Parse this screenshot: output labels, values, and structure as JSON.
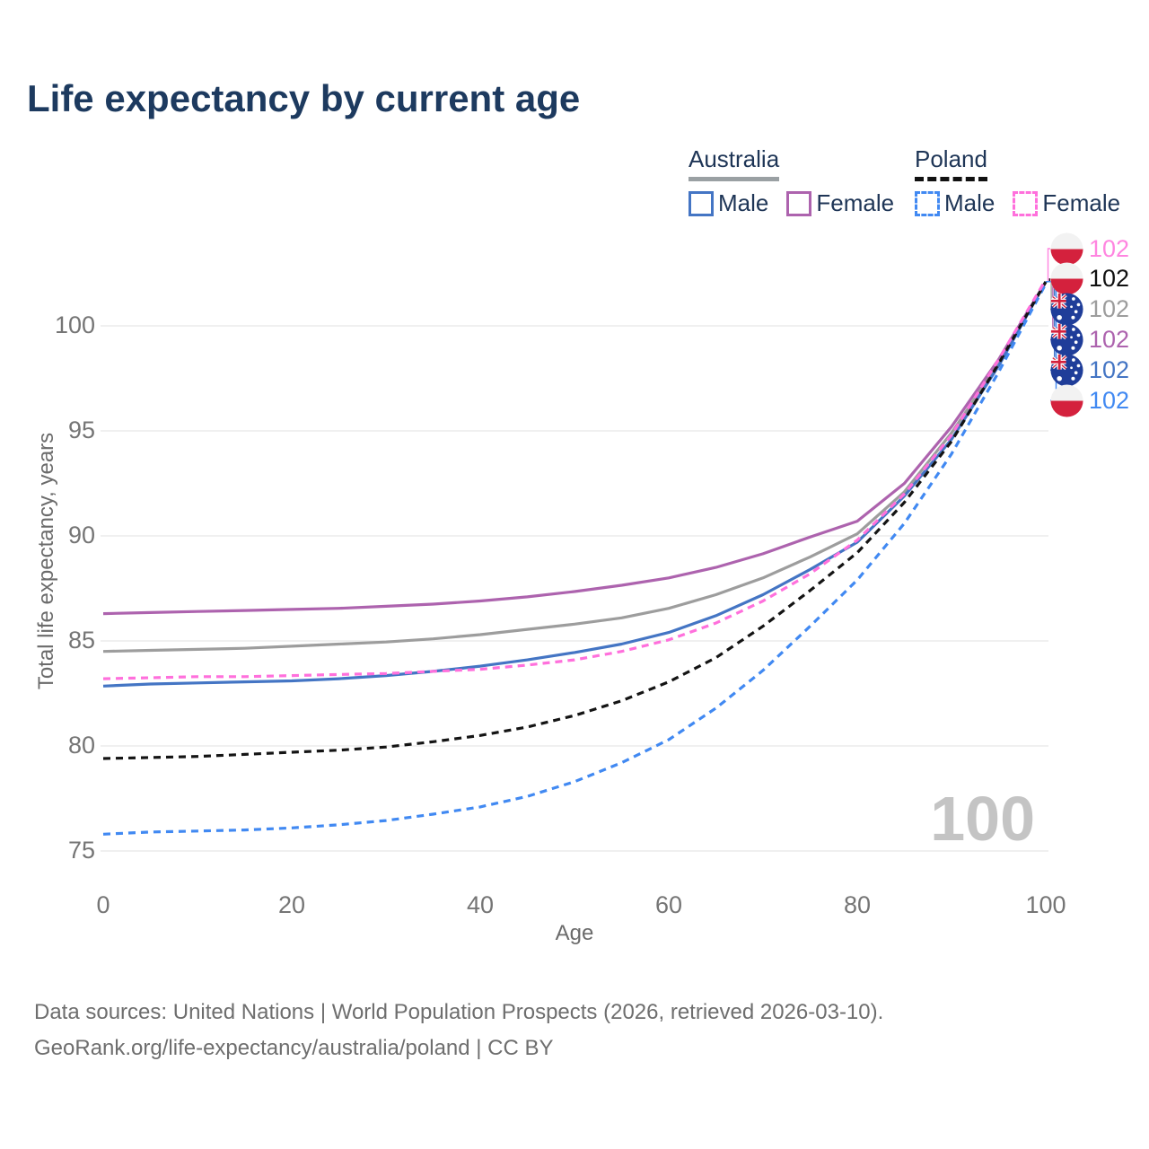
{
  "title": "Life expectancy by current age",
  "legend": {
    "australia": {
      "label": "Australia",
      "male": "Male",
      "female": "Female"
    },
    "poland": {
      "label": "Poland",
      "male": "Male",
      "female": "Female"
    }
  },
  "chart_data": {
    "type": "line",
    "title": "Life expectancy by current age",
    "xlabel": "Age",
    "ylabel": "Total life expectancy, years",
    "watermark": "100",
    "x_ticks": [
      0,
      20,
      40,
      60,
      80,
      100
    ],
    "y_ticks": [
      75,
      80,
      85,
      90,
      95,
      100
    ],
    "xlim": [
      0,
      100
    ],
    "ylim": [
      73.5,
      103.5
    ],
    "grid": "horizontal",
    "x": [
      0,
      5,
      10,
      15,
      20,
      25,
      30,
      35,
      40,
      45,
      50,
      55,
      60,
      65,
      70,
      75,
      80,
      85,
      90,
      95,
      100
    ],
    "series": [
      {
        "name": "Australia Both sexes",
        "country": "Australia",
        "color": "#9d9d9d",
        "dash": false,
        "values": [
          84.5,
          84.55,
          84.6,
          84.65,
          84.75,
          84.85,
          84.95,
          85.1,
          85.3,
          85.55,
          85.8,
          86.1,
          86.55,
          87.2,
          88.0,
          89.0,
          90.1,
          92.1,
          94.9,
          98.2,
          102.1
        ]
      },
      {
        "name": "Australia Female",
        "country": "Australia",
        "color": "#ad63ae",
        "dash": false,
        "values": [
          86.3,
          86.35,
          86.4,
          86.45,
          86.5,
          86.55,
          86.65,
          86.75,
          86.9,
          87.1,
          87.35,
          87.65,
          88.0,
          88.5,
          89.15,
          89.95,
          90.7,
          92.5,
          95.2,
          98.4,
          102.1
        ]
      },
      {
        "name": "Australia Male",
        "country": "Australia",
        "color": "#4475c4",
        "dash": false,
        "values": [
          82.85,
          82.95,
          83.0,
          83.05,
          83.1,
          83.2,
          83.35,
          83.55,
          83.8,
          84.1,
          84.45,
          84.85,
          85.4,
          86.2,
          87.2,
          88.4,
          89.7,
          91.9,
          94.6,
          98.1,
          102.1
        ]
      },
      {
        "name": "Poland Male",
        "country": "Poland",
        "color": "#4189f2",
        "dash": true,
        "values": [
          75.8,
          75.9,
          75.95,
          76.0,
          76.1,
          76.25,
          76.45,
          76.75,
          77.1,
          77.6,
          78.3,
          79.2,
          80.3,
          81.8,
          83.6,
          85.7,
          87.9,
          90.6,
          93.9,
          97.8,
          102.0
        ]
      },
      {
        "name": "Poland Both sexes",
        "country": "Poland",
        "color": "#141414",
        "dash": true,
        "values": [
          79.4,
          79.45,
          79.5,
          79.6,
          79.7,
          79.8,
          79.95,
          80.2,
          80.5,
          80.9,
          81.45,
          82.15,
          83.05,
          84.2,
          85.7,
          87.4,
          89.2,
          91.6,
          94.5,
          98.2,
          102.1
        ]
      },
      {
        "name": "Poland Female",
        "country": "Poland",
        "color": "#ff70dc",
        "dash": true,
        "values": [
          83.2,
          83.25,
          83.3,
          83.3,
          83.35,
          83.4,
          83.45,
          83.55,
          83.65,
          83.85,
          84.1,
          84.5,
          85.05,
          85.85,
          86.9,
          88.2,
          89.8,
          92.0,
          94.8,
          98.4,
          102.2
        ]
      }
    ],
    "end_labels": [
      {
        "series": "Poland Female",
        "flag": "poland",
        "text": "102",
        "color": "#ff85e0"
      },
      {
        "series": "Poland Both sexes",
        "flag": "poland",
        "text": "102",
        "color": "#111111"
      },
      {
        "series": "Australia Both sexes",
        "flag": "australia",
        "text": "102",
        "color": "#9d9d9d"
      },
      {
        "series": "Australia Female",
        "flag": "australia",
        "text": "102",
        "color": "#ad63ae"
      },
      {
        "series": "Australia Male",
        "flag": "australia",
        "text": "102",
        "color": "#4475c4"
      },
      {
        "series": "Poland Male",
        "flag": "poland",
        "text": "102",
        "color": "#4189f2"
      }
    ]
  },
  "footer": {
    "line1": "Data sources: United Nations | World Population Prospects (2026, retrieved 2026-03-10).",
    "line2": "GeoRank.org/life-expectancy/australia/poland | CC BY"
  }
}
